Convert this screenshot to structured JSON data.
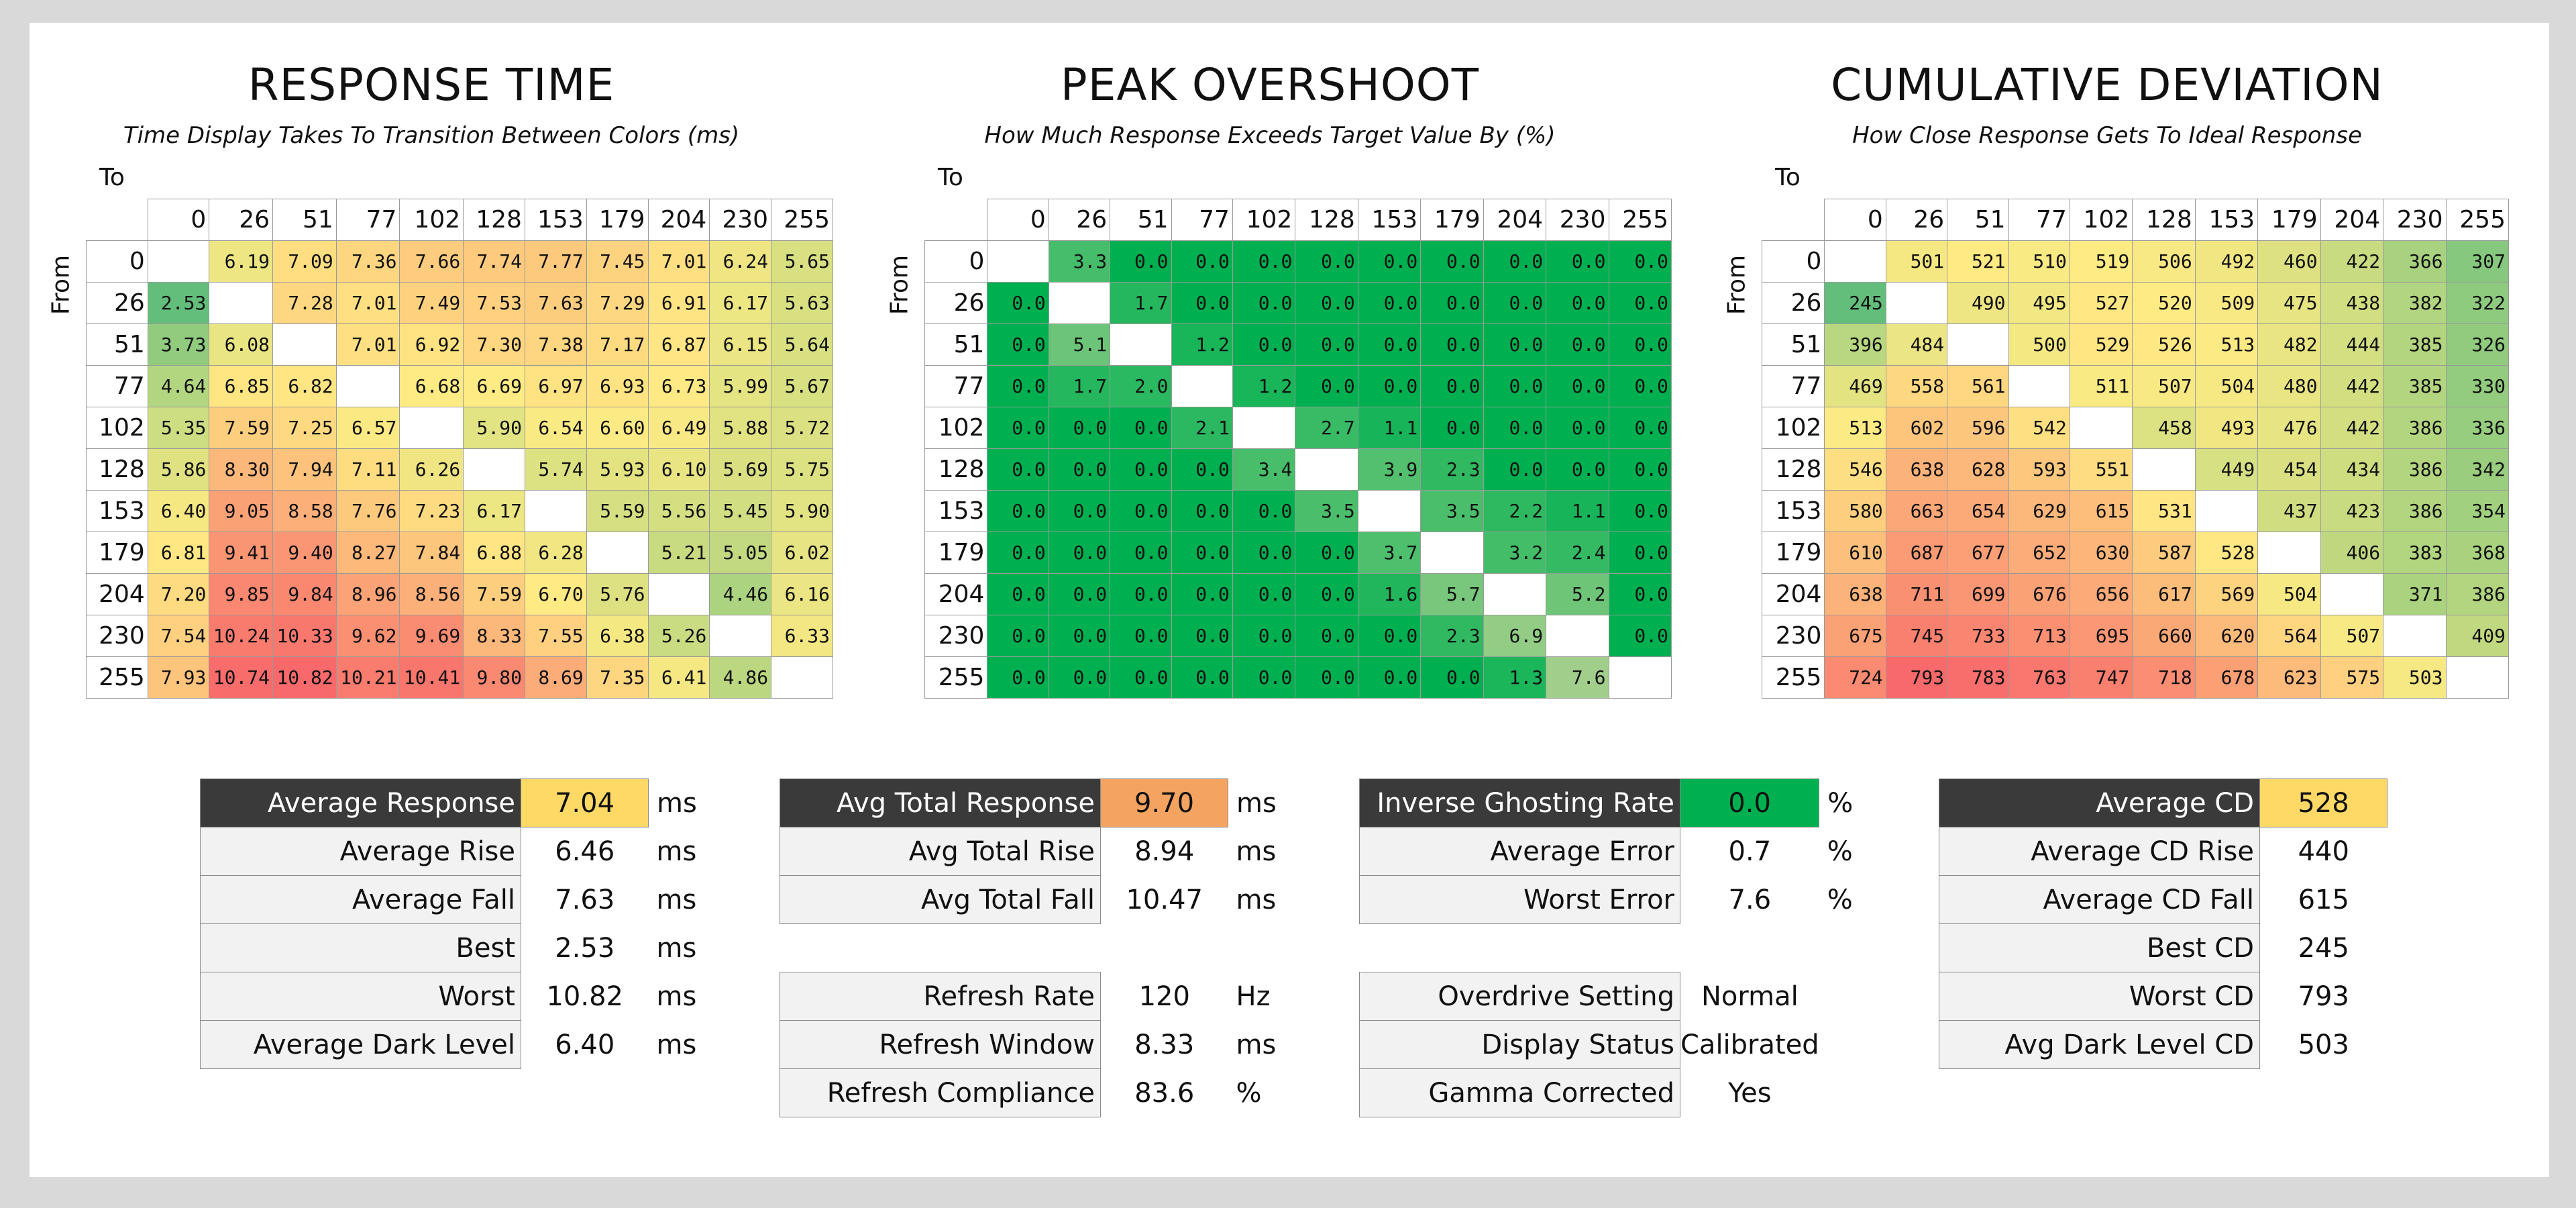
{
  "response_time": {
    "title": "RESPONSE TIME",
    "subtitle": "Time Display Takes To Transition Between Colors (ms)",
    "to_label": "To",
    "from_label": "From",
    "columns": [
      "0",
      "26",
      "51",
      "77",
      "102",
      "128",
      "153",
      "179",
      "204",
      "230",
      "255"
    ],
    "rows": [
      [
        "",
        "6.19",
        "7.09",
        "7.36",
        "7.66",
        "7.74",
        "7.77",
        "7.45",
        "7.01",
        "6.24",
        "5.65"
      ],
      [
        "2.53",
        "",
        "7.28",
        "7.01",
        "7.49",
        "7.53",
        "7.63",
        "7.29",
        "6.91",
        "6.17",
        "5.63"
      ],
      [
        "3.73",
        "6.08",
        "",
        "7.01",
        "6.92",
        "7.30",
        "7.38",
        "7.17",
        "6.87",
        "6.15",
        "5.64"
      ],
      [
        "4.64",
        "6.85",
        "6.82",
        "",
        "6.68",
        "6.69",
        "6.97",
        "6.93",
        "6.73",
        "5.99",
        "5.67"
      ],
      [
        "5.35",
        "7.59",
        "7.25",
        "6.57",
        "",
        "5.90",
        "6.54",
        "6.60",
        "6.49",
        "5.88",
        "5.72"
      ],
      [
        "5.86",
        "8.30",
        "7.94",
        "7.11",
        "6.26",
        "",
        "5.74",
        "5.93",
        "6.10",
        "5.69",
        "5.75"
      ],
      [
        "6.40",
        "9.05",
        "8.58",
        "7.76",
        "7.23",
        "6.17",
        "",
        "5.59",
        "5.56",
        "5.45",
        "5.90"
      ],
      [
        "6.81",
        "9.41",
        "9.40",
        "8.27",
        "7.84",
        "6.88",
        "6.28",
        "",
        "5.21",
        "5.05",
        "6.02"
      ],
      [
        "7.20",
        "9.85",
        "9.84",
        "8.96",
        "8.56",
        "7.59",
        "6.70",
        "5.76",
        "",
        "4.46",
        "6.16"
      ],
      [
        "7.54",
        "10.24",
        "10.33",
        "9.62",
        "9.69",
        "8.33",
        "7.55",
        "6.38",
        "5.26",
        "",
        "6.33"
      ],
      [
        "7.93",
        "10.74",
        "10.82",
        "10.21",
        "10.41",
        "9.80",
        "8.69",
        "7.35",
        "6.41",
        "4.86",
        ""
      ]
    ],
    "stats": [
      {
        "label": "Average Response",
        "value": "7.04",
        "unit": "ms",
        "color": "#ffd966"
      },
      {
        "label": "Average Rise",
        "value": "6.46",
        "unit": "ms"
      },
      {
        "label": "Average Fall",
        "value": "7.63",
        "unit": "ms"
      },
      {
        "label": "Best",
        "value": "2.53",
        "unit": "ms"
      },
      {
        "label": "Worst",
        "value": "10.82",
        "unit": "ms"
      },
      {
        "label": "Average Dark Level",
        "value": "6.40",
        "unit": "ms"
      }
    ]
  },
  "peak_overshoot": {
    "title": "PEAK OVERSHOOT",
    "subtitle": "How Much Response Exceeds Target Value By (%)",
    "to_label": "To",
    "from_label": "From",
    "columns": [
      "0",
      "26",
      "51",
      "77",
      "102",
      "128",
      "153",
      "179",
      "204",
      "230",
      "255"
    ],
    "rows": [
      [
        "",
        "3.3",
        "0.0",
        "0.0",
        "0.0",
        "0.0",
        "0.0",
        "0.0",
        "0.0",
        "0.0",
        "0.0"
      ],
      [
        "0.0",
        "",
        "1.7",
        "0.0",
        "0.0",
        "0.0",
        "0.0",
        "0.0",
        "0.0",
        "0.0",
        "0.0"
      ],
      [
        "0.0",
        "5.1",
        "",
        "1.2",
        "0.0",
        "0.0",
        "0.0",
        "0.0",
        "0.0",
        "0.0",
        "0.0"
      ],
      [
        "0.0",
        "1.7",
        "2.0",
        "",
        "1.2",
        "0.0",
        "0.0",
        "0.0",
        "0.0",
        "0.0",
        "0.0"
      ],
      [
        "0.0",
        "0.0",
        "0.0",
        "2.1",
        "",
        "2.7",
        "1.1",
        "0.0",
        "0.0",
        "0.0",
        "0.0"
      ],
      [
        "0.0",
        "0.0",
        "0.0",
        "0.0",
        "3.4",
        "",
        "3.9",
        "2.3",
        "0.0",
        "0.0",
        "0.0"
      ],
      [
        "0.0",
        "0.0",
        "0.0",
        "0.0",
        "0.0",
        "3.5",
        "",
        "3.5",
        "2.2",
        "1.1",
        "0.0"
      ],
      [
        "0.0",
        "0.0",
        "0.0",
        "0.0",
        "0.0",
        "0.0",
        "3.7",
        "",
        "3.2",
        "2.4",
        "0.0"
      ],
      [
        "0.0",
        "0.0",
        "0.0",
        "0.0",
        "0.0",
        "0.0",
        "1.6",
        "5.7",
        "",
        "5.2",
        "0.0"
      ],
      [
        "0.0",
        "0.0",
        "0.0",
        "0.0",
        "0.0",
        "0.0",
        "0.0",
        "2.3",
        "6.9",
        "",
        "0.0"
      ],
      [
        "0.0",
        "0.0",
        "0.0",
        "0.0",
        "0.0",
        "0.0",
        "0.0",
        "0.0",
        "1.3",
        "7.6",
        ""
      ]
    ],
    "stats": [
      {
        "label": "Avg Total Response",
        "value": "9.70",
        "unit": "ms",
        "color": "#f4a460"
      },
      {
        "label": "Avg Total Rise",
        "value": "8.94",
        "unit": "ms"
      },
      {
        "label": "Avg Total Fall",
        "value": "10.47",
        "unit": "ms"
      },
      {
        "gap": true
      },
      {
        "label": "Refresh Rate",
        "value": "120",
        "unit": "Hz"
      },
      {
        "label": "Refresh Window",
        "value": "8.33",
        "unit": "ms"
      },
      {
        "label": "Refresh Compliance",
        "value": "83.6",
        "unit": "%"
      }
    ]
  },
  "overshoot_stats": [
    {
      "label": "Inverse Ghosting Rate",
      "value": "0.0",
      "unit": "%",
      "color": "#00b050"
    },
    {
      "label": "Average Error",
      "value": "0.7",
      "unit": "%"
    },
    {
      "label": "Worst Error",
      "value": "7.6",
      "unit": "%"
    },
    {
      "gap": true
    },
    {
      "label": "Overdrive Setting",
      "value": "Normal",
      "unit": ""
    },
    {
      "label": "Display Status",
      "value": "Calibrated",
      "unit": ""
    },
    {
      "label": "Gamma Corrected",
      "value": "Yes",
      "unit": ""
    }
  ],
  "cumulative_deviation": {
    "title": "CUMULATIVE DEVIATION",
    "subtitle": "How Close Response Gets To Ideal Response",
    "to_label": "To",
    "from_label": "From",
    "columns": [
      "0",
      "26",
      "51",
      "77",
      "102",
      "128",
      "153",
      "179",
      "204",
      "230",
      "255"
    ],
    "rows": [
      [
        "",
        "501",
        "521",
        "510",
        "519",
        "506",
        "492",
        "460",
        "422",
        "366",
        "307"
      ],
      [
        "245",
        "",
        "490",
        "495",
        "527",
        "520",
        "509",
        "475",
        "438",
        "382",
        "322"
      ],
      [
        "396",
        "484",
        "",
        "500",
        "529",
        "526",
        "513",
        "482",
        "444",
        "385",
        "326"
      ],
      [
        "469",
        "558",
        "561",
        "",
        "511",
        "507",
        "504",
        "480",
        "442",
        "385",
        "330"
      ],
      [
        "513",
        "602",
        "596",
        "542",
        "",
        "458",
        "493",
        "476",
        "442",
        "386",
        "336"
      ],
      [
        "546",
        "638",
        "628",
        "593",
        "551",
        "",
        "449",
        "454",
        "434",
        "386",
        "342"
      ],
      [
        "580",
        "663",
        "654",
        "629",
        "615",
        "531",
        "",
        "437",
        "423",
        "386",
        "354"
      ],
      [
        "610",
        "687",
        "677",
        "652",
        "630",
        "587",
        "528",
        "",
        "406",
        "383",
        "368"
      ],
      [
        "638",
        "711",
        "699",
        "676",
        "656",
        "617",
        "569",
        "504",
        "",
        "371",
        "386"
      ],
      [
        "675",
        "745",
        "733",
        "713",
        "695",
        "660",
        "620",
        "564",
        "507",
        "",
        "409"
      ],
      [
        "724",
        "793",
        "783",
        "763",
        "747",
        "718",
        "678",
        "623",
        "575",
        "503",
        ""
      ]
    ],
    "stats": [
      {
        "label": "Average CD",
        "value": "528",
        "unit": "",
        "color": "#ffd966"
      },
      {
        "label": "Average CD Rise",
        "value": "440",
        "unit": ""
      },
      {
        "label": "Average CD Fall",
        "value": "615",
        "unit": ""
      },
      {
        "label": "Best CD",
        "value": "245",
        "unit": ""
      },
      {
        "label": "Worst CD",
        "value": "793",
        "unit": ""
      },
      {
        "label": "Avg Dark Level CD",
        "value": "503",
        "unit": ""
      }
    ]
  },
  "colors": {
    "good": "#63be7b",
    "mid": "#ffeb84",
    "bad": "#f8696b",
    "green": "#00b050",
    "header_dark": "#3a3a3a"
  }
}
